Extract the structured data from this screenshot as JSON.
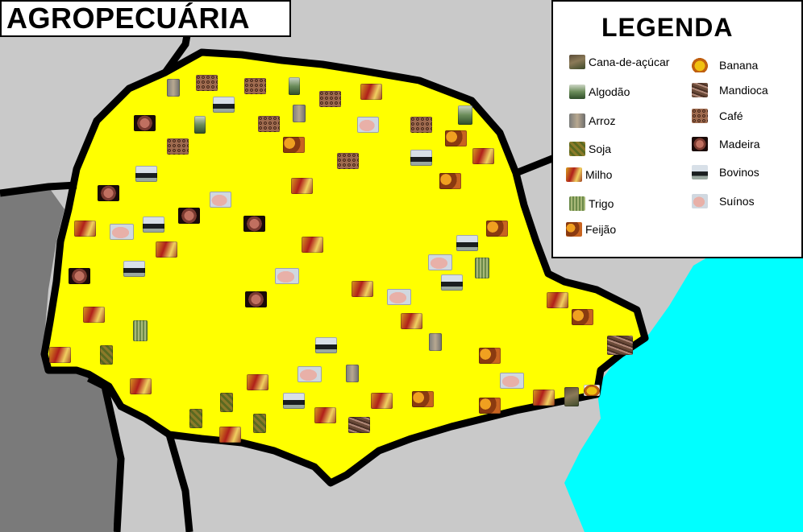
{
  "title": "AGROPECUÁRIA",
  "legend": {
    "title": "LEGENDA",
    "items": [
      {
        "label": "Cana-de-açúcar",
        "icon": "sugarcane-icon",
        "cls": "i-cana"
      },
      {
        "label": "Algodão",
        "icon": "cotton-icon",
        "cls": "i-algodao"
      },
      {
        "label": "Arroz",
        "icon": "rice-icon",
        "cls": "i-arroz"
      },
      {
        "label": "Soja",
        "icon": "soy-icon",
        "cls": "i-soja"
      },
      {
        "label": "Milho",
        "icon": "corn-icon",
        "cls": "i-milho"
      },
      {
        "label": "Trigo",
        "icon": "wheat-icon",
        "cls": "i-trigo"
      },
      {
        "label": "Feijão",
        "icon": "bean-icon",
        "cls": "i-feijao"
      },
      {
        "label": "Banana",
        "icon": "banana-icon",
        "cls": "i-banana"
      },
      {
        "label": "Mandioca",
        "icon": "cassava-icon",
        "cls": "i-mandioca"
      },
      {
        "label": "Café",
        "icon": "coffee-icon",
        "cls": "i-cafe"
      },
      {
        "label": "Madeira",
        "icon": "wood-icon",
        "cls": "i-madeira"
      },
      {
        "label": "Bovinos",
        "icon": "cattle-icon",
        "cls": "i-bovinos"
      },
      {
        "label": "Suínos",
        "icon": "pig-icon",
        "cls": "i-suinos"
      }
    ]
  },
  "colors": {
    "state_fill": "#ffff00",
    "ocean": "#00ffff",
    "neighbor_land": "#c9c9c9",
    "west_land": "#7a7a7a",
    "border": "#000000"
  }
}
